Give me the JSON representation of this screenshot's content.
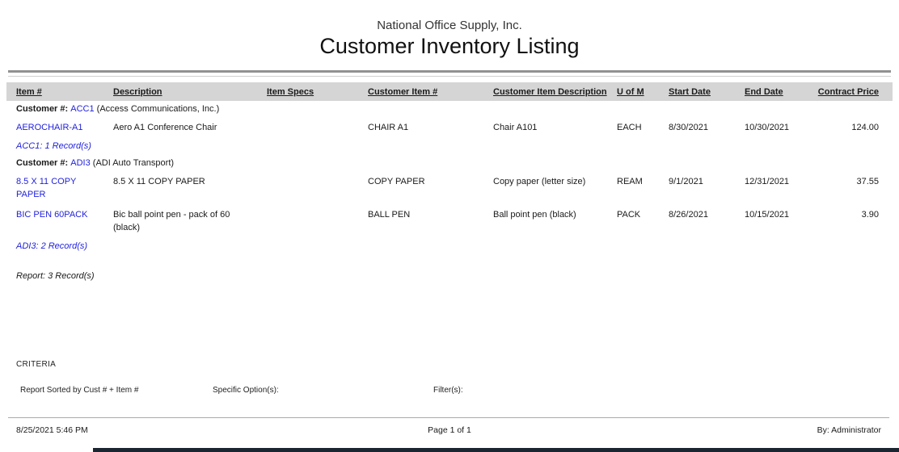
{
  "report": {
    "company": "National Office Supply, Inc.",
    "title": "Customer Inventory Listing",
    "columns": [
      {
        "label": "Item #",
        "align": "left"
      },
      {
        "label": "Description",
        "align": "left"
      },
      {
        "label": "Item Specs",
        "align": "left"
      },
      {
        "label": "Customer Item #",
        "align": "left"
      },
      {
        "label": "Customer Item Description",
        "align": "left"
      },
      {
        "label": "U of M",
        "align": "left"
      },
      {
        "label": "Start Date",
        "align": "left"
      },
      {
        "label": "End Date",
        "align": "left"
      },
      {
        "label": "Contract Price",
        "align": "right"
      }
    ],
    "customer_label": "Customer #:",
    "groups": [
      {
        "customer_code": "ACC1",
        "customer_name": "(Access Communications, Inc.)",
        "rows": [
          {
            "item": "AEROCHAIR-A1",
            "description": "Aero A1 Conference Chair",
            "item_specs": "",
            "customer_item": "CHAIR A1",
            "customer_item_description": "Chair A101",
            "uom": "EACH",
            "start_date": "8/30/2021",
            "end_date": "10/30/2021",
            "contract_price": "124.00"
          }
        ],
        "summary": "ACC1: 1 Record(s)"
      },
      {
        "customer_code": "ADI3",
        "customer_name": "(ADI Auto Transport)",
        "rows": [
          {
            "item": "8.5 X 11 COPY PAPER",
            "description": "8.5 X 11 COPY PAPER",
            "item_specs": "",
            "customer_item": "COPY PAPER",
            "customer_item_description": "Copy paper (letter size)",
            "uom": "REAM",
            "start_date": "9/1/2021",
            "end_date": "12/31/2021",
            "contract_price": "37.55"
          },
          {
            "item": "BIC PEN 60PACK",
            "description": "Bic ball point pen - pack of 60 (black)",
            "item_specs": "",
            "customer_item": "BALL PEN",
            "customer_item_description": "Ball point pen (black)",
            "uom": "PACK",
            "start_date": "8/26/2021",
            "end_date": "10/15/2021",
            "contract_price": "3.90"
          }
        ],
        "summary": "ADI3: 2 Record(s)"
      }
    ],
    "report_summary": "Report: 3 Record(s)",
    "criteria": {
      "heading": "CRITERIA",
      "sorted_by": "Report Sorted by Cust # + Item #",
      "specific_options_label": "Specific Option(s):",
      "filters_label": "Filter(s):"
    },
    "footer": {
      "datetime": "8/25/2021 5:46 PM",
      "page": "Page 1 of 1",
      "by": "By: Administrator"
    }
  },
  "colors": {
    "link_blue": "#2222dd",
    "header_band_gray": "#d5d5d5",
    "bottom_bar": "#1b2531"
  }
}
